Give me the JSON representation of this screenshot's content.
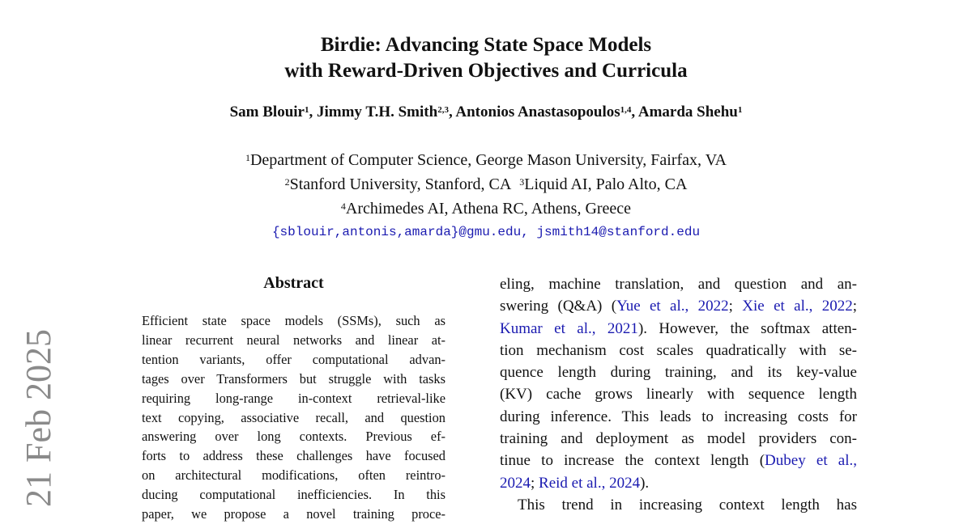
{
  "title": [
    "Birdie: Advancing State Space Models",
    "with Reward-Driven Objectives and Curricula"
  ],
  "authors": [
    {
      "name": "Sam Blouir",
      "sup": "1"
    },
    {
      "name": "Jimmy T.H. Smith",
      "sup": "2,3"
    },
    {
      "name": "Antonios Anastasopoulos",
      "sup": "1,4"
    },
    {
      "name": "Amarda Shehu",
      "sup": "1"
    }
  ],
  "affiliations": {
    "a1": {
      "sup": "1",
      "text": "Department of Computer Science, George Mason University, Fairfax, VA"
    },
    "a2": {
      "sup": "2",
      "text": "Stanford University, Stanford, CA"
    },
    "a3": {
      "sup": "3",
      "text": "Liquid AI, Palo Alto, CA"
    },
    "a4": {
      "sup": "4",
      "text": "Archimedes AI, Athena RC, Athens, Greece"
    }
  },
  "emails": "{sblouir,antonis,amarda}@gmu.edu, jsmith14@stanford.edu",
  "arxiv_stamp": "21 Feb 2025",
  "abstract_heading": "Abstract",
  "abstract_lines": [
    "Efficient state space models (SSMs), such as",
    "linear recurrent neural networks and linear at-",
    "tention variants, offer computational advan-",
    "tages over Transformers but struggle with tasks",
    "requiring long-range in-context retrieval-like",
    "text copying, associative recall, and question",
    "answering over long contexts.  Previous ef-",
    "forts to address these challenges have focused",
    "on architectural modifications, often reintro-",
    "ducing computational inefficiencies.  In this",
    "paper, we propose a novel training proce-"
  ],
  "body_lines": [
    [
      {
        "t": "eling, machine translation, and question and an-"
      }
    ],
    [
      {
        "t": "swering (Q&A) ("
      },
      {
        "t": "Yue et al., 2022",
        "cite": true
      },
      {
        "t": "; "
      },
      {
        "t": "Xie et al., 2022",
        "cite": true
      },
      {
        "t": ";"
      }
    ],
    [
      {
        "t": "Kumar et al., 2021",
        "cite": true
      },
      {
        "t": "). However, the softmax atten-"
      }
    ],
    [
      {
        "t": "tion mechanism cost scales quadratically with se-"
      }
    ],
    [
      {
        "t": "quence length during training, and its key-value"
      }
    ],
    [
      {
        "t": "(KV) cache grows linearly with sequence length"
      }
    ],
    [
      {
        "t": "during inference. This leads to increasing costs for"
      }
    ],
    [
      {
        "t": "training and deployment as model providers con-"
      }
    ],
    [
      {
        "t": "tinue to increase the context length ("
      },
      {
        "t": "Dubey et al.,",
        "cite": true
      }
    ],
    [
      {
        "t": "2024",
        "cite": true
      },
      {
        "t": "; "
      },
      {
        "t": "Reid et al., 2024",
        "cite": true
      },
      {
        "t": ")."
      }
    ],
    [
      {
        "t": "This trend in increasing context length has"
      }
    ]
  ]
}
